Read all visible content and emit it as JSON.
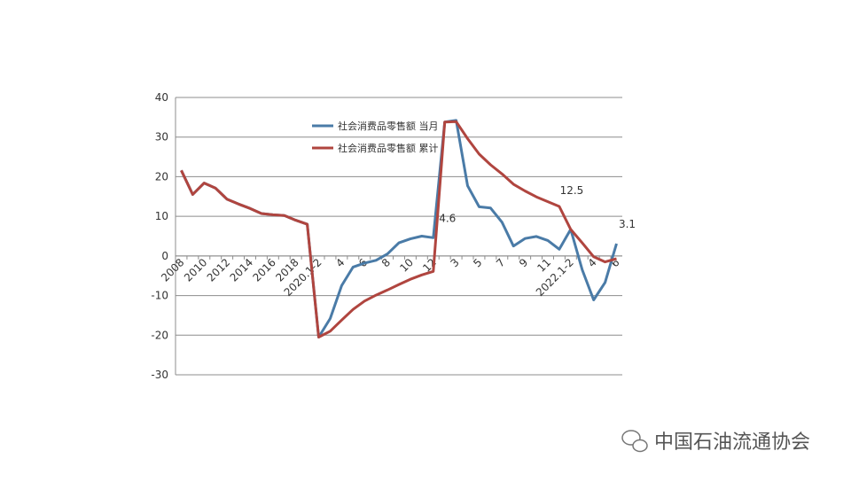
{
  "chart_data": {
    "type": "line",
    "categories": [
      "2008",
      null,
      "2010",
      null,
      "2012",
      null,
      "2014",
      null,
      "2016",
      null,
      "2018",
      null,
      "2020.1-2",
      null,
      "4",
      null,
      "6",
      null,
      "8",
      null,
      "10",
      null,
      "12",
      null,
      "3",
      null,
      "5",
      null,
      "7",
      null,
      "9",
      null,
      "11",
      null,
      "2022.1-2",
      null,
      "4",
      null,
      "6"
    ],
    "series": [
      {
        "name": "社会消费品零售额 当月",
        "color": "#4a7ba7",
        "values": [
          21.6,
          15.5,
          18.4,
          17.1,
          14.3,
          13.1,
          12.0,
          10.7,
          10.4,
          10.2,
          9.0,
          8.0,
          -20.5,
          -15.8,
          -7.5,
          -2.8,
          -1.8,
          -1.1,
          0.5,
          3.3,
          4.3,
          5.0,
          4.6,
          33.8,
          34.2,
          17.7,
          12.4,
          12.1,
          8.5,
          2.5,
          4.4,
          4.9,
          3.9,
          1.7,
          6.7,
          -3.5,
          -11.1,
          -6.7,
          3.1
        ],
        "value_labels": [
          null,
          null,
          null,
          null,
          null,
          null,
          null,
          null,
          null,
          null,
          null,
          null,
          null,
          null,
          null,
          null,
          null,
          null,
          null,
          null,
          null,
          null,
          "4.6",
          null,
          null,
          null,
          null,
          null,
          null,
          null,
          null,
          null,
          null,
          null,
          null,
          null,
          null,
          null,
          "3.1"
        ]
      },
      {
        "name": "社会消费品零售额 累计",
        "color": "#b0453f",
        "values": [
          21.6,
          15.5,
          18.4,
          17.1,
          14.3,
          13.1,
          12.0,
          10.7,
          10.4,
          10.2,
          9.0,
          8.0,
          -20.5,
          -19.0,
          -16.2,
          -13.5,
          -11.4,
          -9.9,
          -8.6,
          -7.2,
          -5.9,
          -4.8,
          -3.9,
          33.8,
          33.9,
          29.6,
          25.7,
          23.0,
          20.7,
          18.1,
          16.4,
          14.9,
          13.7,
          12.5,
          6.7,
          3.3,
          -0.2,
          -1.5,
          -0.7
        ],
        "value_labels": [
          null,
          null,
          null,
          null,
          null,
          null,
          null,
          null,
          null,
          null,
          null,
          null,
          null,
          null,
          null,
          null,
          null,
          null,
          null,
          null,
          null,
          null,
          null,
          null,
          null,
          null,
          null,
          null,
          null,
          null,
          null,
          null,
          null,
          "12.5",
          null,
          null,
          null,
          null,
          null
        ]
      }
    ],
    "ylim": [
      -30,
      40
    ],
    "yticks": [
      -30,
      -20,
      -10,
      0,
      10,
      20,
      30,
      40
    ],
    "grid": true
  },
  "watermark": "中国石油流通协会"
}
